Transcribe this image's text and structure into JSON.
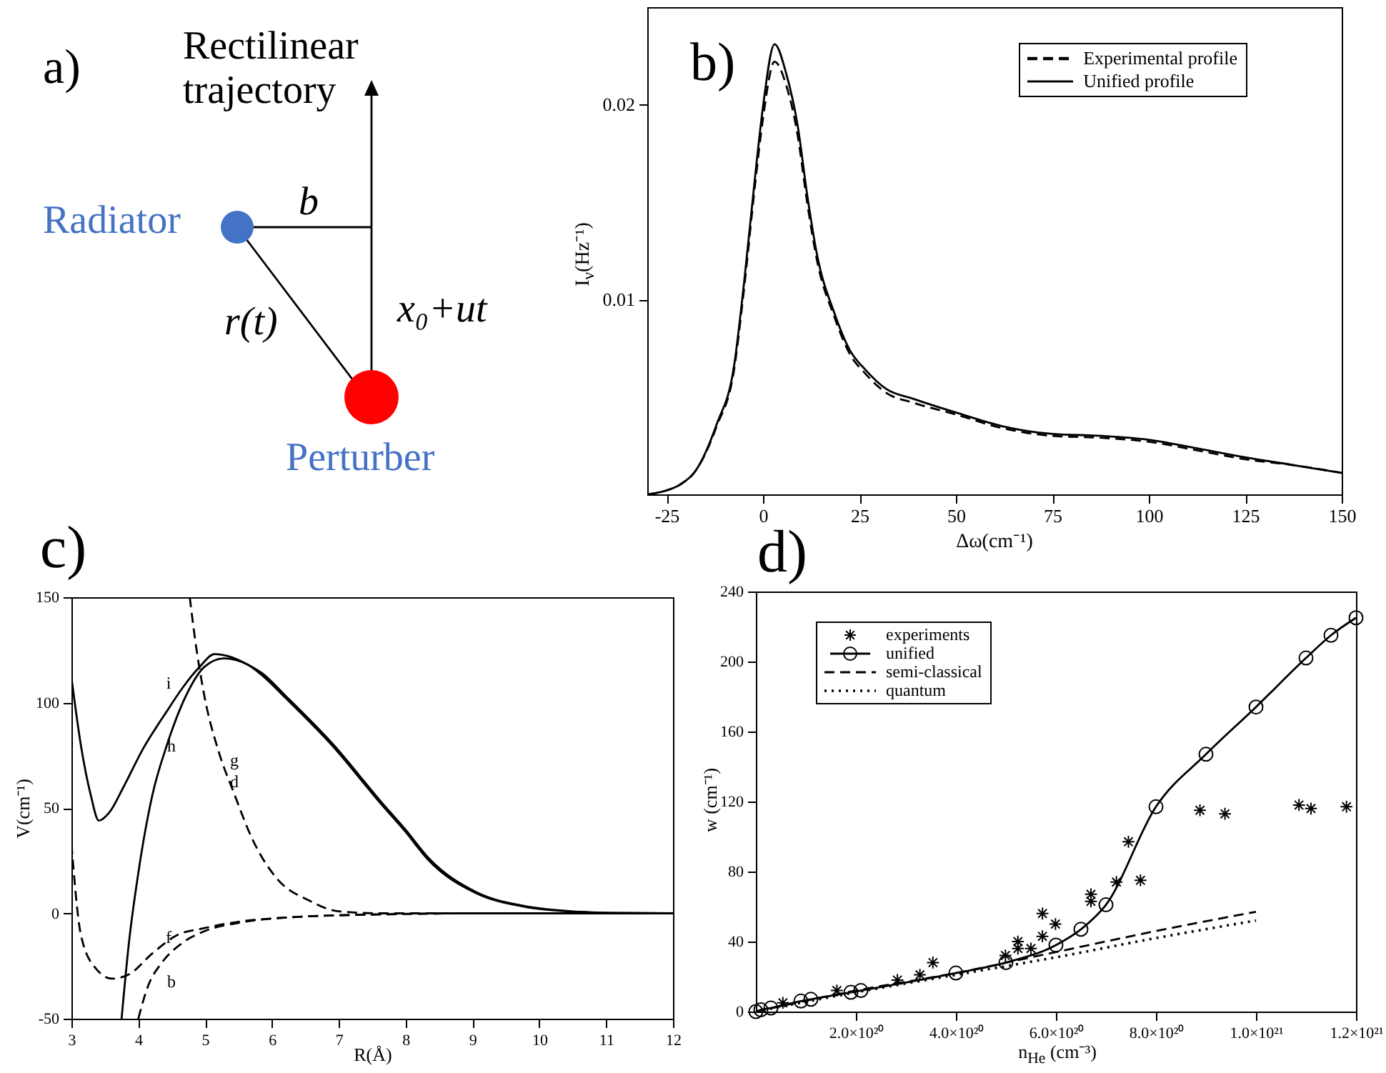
{
  "chart_data": [
    {
      "type": "other",
      "title": "a)",
      "annotations": [
        "Rectilinear trajectory",
        "Radiator",
        "b",
        "r(t)",
        "x₀+ut",
        "Perturber"
      ]
    },
    {
      "type": "line",
      "title": "b)",
      "xlabel": "Δω(cm⁻¹)",
      "ylabel": "I$_{ν}$(Hz⁻¹)",
      "xlim": [
        -30,
        150
      ],
      "xticks": [
        -25,
        0,
        25,
        50,
        75,
        100,
        125,
        150
      ],
      "ylim": [
        0,
        0.025
      ],
      "yticks": [
        0.01,
        0.02
      ],
      "legend": "top right",
      "x": [
        -30,
        -25,
        -21.5,
        -17.5,
        -12,
        -7.5,
        -5,
        -2,
        0,
        3,
        6,
        9,
        11.5,
        14,
        18.5,
        22.5,
        26.5,
        32,
        39,
        50,
        62,
        75,
        88,
        100,
        111.5,
        125,
        137.5,
        150
      ],
      "series": [
        {
          "name": "Experimental profile",
          "color": "#000000",
          "line_style": "dashed",
          "values": [
            0,
            0.0002,
            0.0005,
            0.0012,
            0.0035,
            0.0064,
            0.0104,
            0.016,
            0.0193,
            0.0222,
            0.021,
            0.0184,
            0.0149,
            0.012,
            0.0091,
            0.0072,
            0.0062,
            0.0052,
            0.0047,
            0.0041,
            0.0034,
            0.003,
            0.0029,
            0.0027,
            0.0023,
            0.0018,
            0.0015,
            0.0011
          ]
        },
        {
          "name": "Unified profile",
          "color": "#000000",
          "line_style": "solid",
          "values": [
            0,
            0.0002,
            0.0005,
            0.0012,
            0.0036,
            0.0066,
            0.0107,
            0.0164,
            0.0199,
            0.0231,
            0.0216,
            0.0189,
            0.0153,
            0.0123,
            0.0093,
            0.0074,
            0.0064,
            0.0054,
            0.0049,
            0.0042,
            0.0035,
            0.0031,
            0.003,
            0.0028,
            0.0024,
            0.0019,
            0.0015,
            0.0011
          ]
        }
      ]
    },
    {
      "type": "line",
      "title": "c)",
      "xlabel": "R(Å)",
      "ylabel": "V(cm⁻¹)",
      "xlim": [
        3,
        12
      ],
      "xticks": [
        3,
        4,
        5,
        6,
        7,
        8,
        9,
        10,
        11,
        12
      ],
      "ylim": [
        -50,
        150
      ],
      "yticks": [
        -50,
        0,
        50,
        100,
        150
      ],
      "series": [
        {
          "color": "#000000",
          "line_style": "solid",
          "x": [
            3,
            3.14,
            3.29,
            3.41,
            3.57,
            3.78,
            4.07,
            4.43,
            4.64,
            4.92,
            5.14,
            5.35,
            5.64,
            5.85,
            6.21,
            6.92,
            7.63,
            7.99,
            8.35,
            9.06,
            9.77,
            10.48,
            11.2,
            12
          ],
          "values": [
            112,
            80,
            56,
            44,
            48,
            60,
            78,
            96,
            106,
            117,
            123,
            122,
            118,
            114,
            103,
            80,
            53,
            40,
            26,
            10,
            3.5,
            1,
            0.2,
            0
          ]
        },
        {
          "color": "#000000",
          "line_style": "solid",
          "x": [
            3.75,
            3.86,
            4,
            4.21,
            4.43,
            4.71,
            4.99,
            5.28,
            5.64,
            5.85,
            6.21,
            6.92,
            7.63,
            7.99,
            8.35,
            9.06,
            9.77,
            10.48,
            11.2,
            12
          ],
          "values": [
            -50,
            -14,
            19,
            56,
            80,
            103,
            117,
            121,
            118,
            113,
            102,
            79,
            52,
            39,
            25,
            9.5,
            3.2,
            0.8,
            0.1,
            0
          ]
        },
        {
          "color": "#000000",
          "line_style": "dashed",
          "x": [
            4.77,
            4.85,
            4.99,
            5.21,
            5.42,
            5.71,
            6.06,
            6.56,
            6.99,
            7.63,
            9,
            12
          ],
          "values": [
            150,
            130,
            103,
            76,
            58,
            35,
            17,
            6,
            1,
            0,
            0,
            0
          ]
        },
        {
          "color": "#000000",
          "line_style": "dashed",
          "x": [
            3,
            3.14,
            3.36,
            3.61,
            3.86,
            4.21,
            4.57,
            4.99,
            5.5,
            6.21,
            7.63,
            9,
            12
          ],
          "values": [
            33,
            -10,
            -26,
            -31,
            -29,
            -19,
            -10.5,
            -7,
            -4,
            -2,
            -0.5,
            0,
            0
          ]
        },
        {
          "color": "#000000",
          "line_style": "dashed",
          "x": [
            4,
            4.14,
            4.35,
            4.64,
            4.99,
            5.5,
            6.21,
            7.63,
            9,
            12
          ],
          "values": [
            -50,
            -35,
            -23.5,
            -14.5,
            -8.5,
            -4.5,
            -2,
            -0.5,
            0,
            0
          ]
        }
      ],
      "annotations": [
        "i",
        "h",
        "g",
        "d",
        "f",
        "b"
      ]
    },
    {
      "type": "line",
      "title": "d)",
      "xlabel": "n$_{He}$ (cm⁻³)",
      "ylabel": "w (cm⁻¹)",
      "xlim": [
        0,
        1.2e+21
      ],
      "xticks": [
        {
          "value": 2e+20,
          "label": "2.0×10²⁰"
        },
        {
          "value": 4e+20,
          "label": "4.0×10²⁰"
        },
        {
          "value": 6e+20,
          "label": "6.0×10²⁰"
        },
        {
          "value": 8e+20,
          "label": "8.0×10²⁰"
        },
        {
          "value": 1e+21,
          "label": "1.0×10²¹"
        },
        {
          "value": 1.2e+21,
          "label": "1.2×10²¹"
        }
      ],
      "ylim": [
        0,
        240
      ],
      "yticks": [
        0,
        40,
        80,
        120,
        160,
        200,
        240
      ],
      "legend": "top left",
      "series": [
        {
          "name": "experiments",
          "type": "scatter",
          "marker": "cross",
          "color": "#000000",
          "x": [
            5.4e+19,
            1.62e+20,
            2.83e+20,
            3.28e+20,
            3.54e+20,
            4.99e+20,
            5.24e+20,
            5.24e+20,
            5.5e+20,
            5.73e+20,
            5.73e+20,
            5.99e+20,
            6.7e+20,
            6.7e+20,
            7.21e+20,
            7.45e+20,
            7.69e+20,
            8.88e+20,
            9.38e+20,
            1.086e+21,
            1.11e+21,
            1.181e+21
          ],
          "values": [
            5,
            12,
            18,
            21,
            28,
            32,
            40,
            36,
            36,
            56,
            43,
            50,
            67,
            63,
            74,
            97,
            75,
            115,
            113,
            118,
            116,
            117
          ]
        },
        {
          "name": "unified",
          "type": "line",
          "marker": "circle",
          "line_style": "solid",
          "color": "#000000",
          "x": [
            0,
            1e+19,
            3e+19,
            9e+19,
            1.1e+20,
            1.9e+20,
            2.1e+20,
            4e+20,
            5e+20,
            6e+20,
            6.5e+20,
            7e+20,
            8e+20,
            9e+20,
            1e+21,
            1.1e+21,
            1.15e+21,
            1.2e+21
          ],
          "values": [
            0,
            1,
            2,
            6,
            7,
            11,
            12,
            22,
            28,
            38,
            47,
            61,
            117,
            147,
            174,
            202,
            215,
            225
          ]
        },
        {
          "name": "semi-classical",
          "type": "line",
          "line_style": "dashed",
          "color": "#000000",
          "x": [
            0,
            2e+20,
            4e+20,
            6e+20,
            8e+20,
            1e+21
          ],
          "values": [
            0,
            12,
            22,
            34,
            46,
            57
          ]
        },
        {
          "name": "quantum",
          "type": "line",
          "line_style": "dotted",
          "color": "#000000",
          "x": [
            0,
            2e+20,
            4e+20,
            6e+20,
            8e+20,
            1e+21
          ],
          "values": [
            0,
            11,
            21,
            31,
            42,
            52
          ]
        }
      ]
    }
  ]
}
